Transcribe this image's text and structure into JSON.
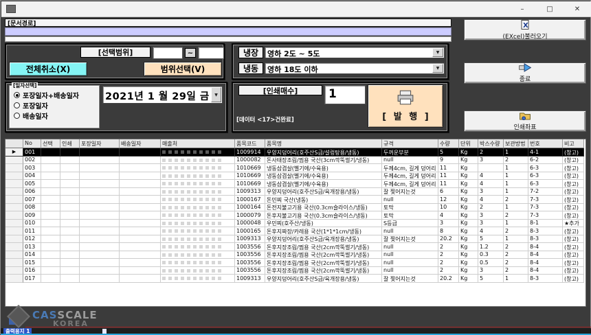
{
  "window": {
    "title": "",
    "controls": {
      "minimize": "–",
      "maximize": "□",
      "close": "✕"
    }
  },
  "doc_path": {
    "label": "[문서경로]",
    "value": ""
  },
  "excel_button": {
    "label": "(EXcel)불러오기"
  },
  "range": {
    "label": "[선택범위]",
    "from": "",
    "to": "",
    "tilde": "~",
    "cancel_all_label": "전체취소(X)",
    "select_label": "범위선택(V)"
  },
  "temperature": {
    "cold": {
      "label": "냉장",
      "value": "영하 2도 ~ 5도"
    },
    "frozen": {
      "label": "냉동",
      "value": "영하 18도 이하"
    }
  },
  "date_group": {
    "label": "[일자선택]",
    "options": [
      "포장일자+배송일자",
      "포장일자",
      "배송일자"
    ],
    "selected_index": 0,
    "date_value": "2021년  1 월 29일 금"
  },
  "print": {
    "count_label": "[인쇄매수]",
    "count_value": "1",
    "status": "[데이터 <17>건완료]",
    "publish_label": "[ 발 행 ]"
  },
  "side_buttons": {
    "exit": "종료",
    "print_coord": "인쇄좌표"
  },
  "table": {
    "columns": [
      "",
      "No",
      "선택",
      "인쇄",
      "포장일자",
      "배송일자",
      "매출처",
      "품목코드",
      "품목명",
      "규격",
      "수량",
      "단위",
      "박스수량",
      "보관방법",
      "번호",
      "비고"
    ],
    "selected_row_index": 0,
    "rows": [
      [
        "001",
        "1009914",
        "우양지덩어리(호주산S급/설렁탕용/냉동)",
        "두꺼운부분",
        "5",
        "Kg",
        "2",
        "1",
        "4-1",
        "(창고)"
      ],
      [
        "002",
        "1000082",
        "돈사태장조림/찜용 국산(3cm깍뚝썰기/냉동)",
        "null",
        "9",
        "Kg",
        "3",
        "2",
        "6-2",
        "(창고)"
      ],
      [
        "003",
        "1010669",
        "냉동삼겹살(벨기에/수육용)",
        "두께4cm, 길게 덩어리",
        "11",
        "Kg",
        "",
        "1",
        "6-3",
        "(창고)"
      ],
      [
        "004",
        "1010669",
        "냉동삼겹살(벨기에/수육용)",
        "두께4cm, 길게 덩어리",
        "11",
        "Kg",
        "4",
        "1",
        "6-3",
        "(창고)"
      ],
      [
        "005",
        "1010669",
        "냉동삼겹살(벨기에/수육용)",
        "두께4cm, 길게 덩어리",
        "11",
        "Kg",
        "4",
        "1",
        "6-3",
        "(창고)"
      ],
      [
        "006",
        "1009313",
        "우양지덩어리(호주산S급/육개장용/냉동)",
        "잘 찢어지는것",
        "6",
        "Kg",
        "3",
        "1",
        "7-2",
        "(창고)"
      ],
      [
        "007",
        "1000167",
        "돈민찌 국산(냉동)",
        "null",
        "12",
        "Kg",
        "4",
        "2",
        "7-3",
        "(창고)"
      ],
      [
        "008",
        "1000164",
        "돈전지불고기용 국산(0.3cm슬라이스/냉동)",
        "토막",
        "10",
        "Kg",
        "2",
        "1",
        "7-3",
        "(창고)"
      ],
      [
        "009",
        "1000079",
        "돈후지불고기용 국산(0.3cm슬라이스/냉동)",
        "토막",
        "4",
        "Kg",
        "3",
        "2",
        "7-3",
        "(창고)"
      ],
      [
        "010",
        "1000048",
        "우민찌(호주산/냉동)",
        "S등급",
        "3",
        "Kg",
        "3",
        "1",
        "8-1",
        "★추가"
      ],
      [
        "011",
        "1000165",
        "돈후지짜장/카레용 국산(1*1*1cm/냉동)",
        "null",
        "8",
        "Kg",
        "4",
        "2",
        "8-3",
        "(창고)"
      ],
      [
        "012",
        "1009313",
        "우양지덩어리(호주산S급/육개장용/냉동)",
        "잘 찢어지는것",
        "20.2",
        "Kg",
        "5",
        "1",
        "8-3",
        "(창고)"
      ],
      [
        "013",
        "1003556",
        "돈후지장조림/찜용 국산(2cm깍뚝썰기/냉동)",
        "null",
        "2",
        "Kg",
        "1.2",
        "2",
        "8-4",
        "(창고)"
      ],
      [
        "014",
        "1003556",
        "돈후지장조림/찜용 국산(2cm깍뚝썰기/냉동)",
        "null",
        "2",
        "Kg",
        "0.3",
        "2",
        "8-4",
        "(창고)"
      ],
      [
        "015",
        "1003556",
        "돈후지장조림/찜용 국산(2cm깍뚝썰기/냉동)",
        "null",
        "2",
        "Kg",
        "0.5",
        "2",
        "8-4",
        "(창고)"
      ],
      [
        "016",
        "1003556",
        "돈후지장조림/찜용 국산(2cm깍뚝썰기/냉동)",
        "null",
        "2",
        "Kg",
        "3",
        "2",
        "8-4",
        "(창고)"
      ],
      [
        "017",
        "1009313",
        "우양지덩어리(호주산S급/육개장용/냉동)",
        "잘 찢어지는것",
        "20.2",
        "Kg",
        "5",
        "1",
        "8-3",
        "(창고)"
      ]
    ]
  },
  "footer": {
    "brand_cas": "CAS",
    "brand_scale": "SCALE",
    "brand_korea": "KOREA",
    "status_text": "출력용지 1"
  },
  "colors": {
    "accent_cyan": "#84f4f4",
    "accent_peach": "#ffe1bd",
    "input_lavender": "#ccccff",
    "brand_blue": "#4a7ab5",
    "brand_red": "#a42222"
  }
}
